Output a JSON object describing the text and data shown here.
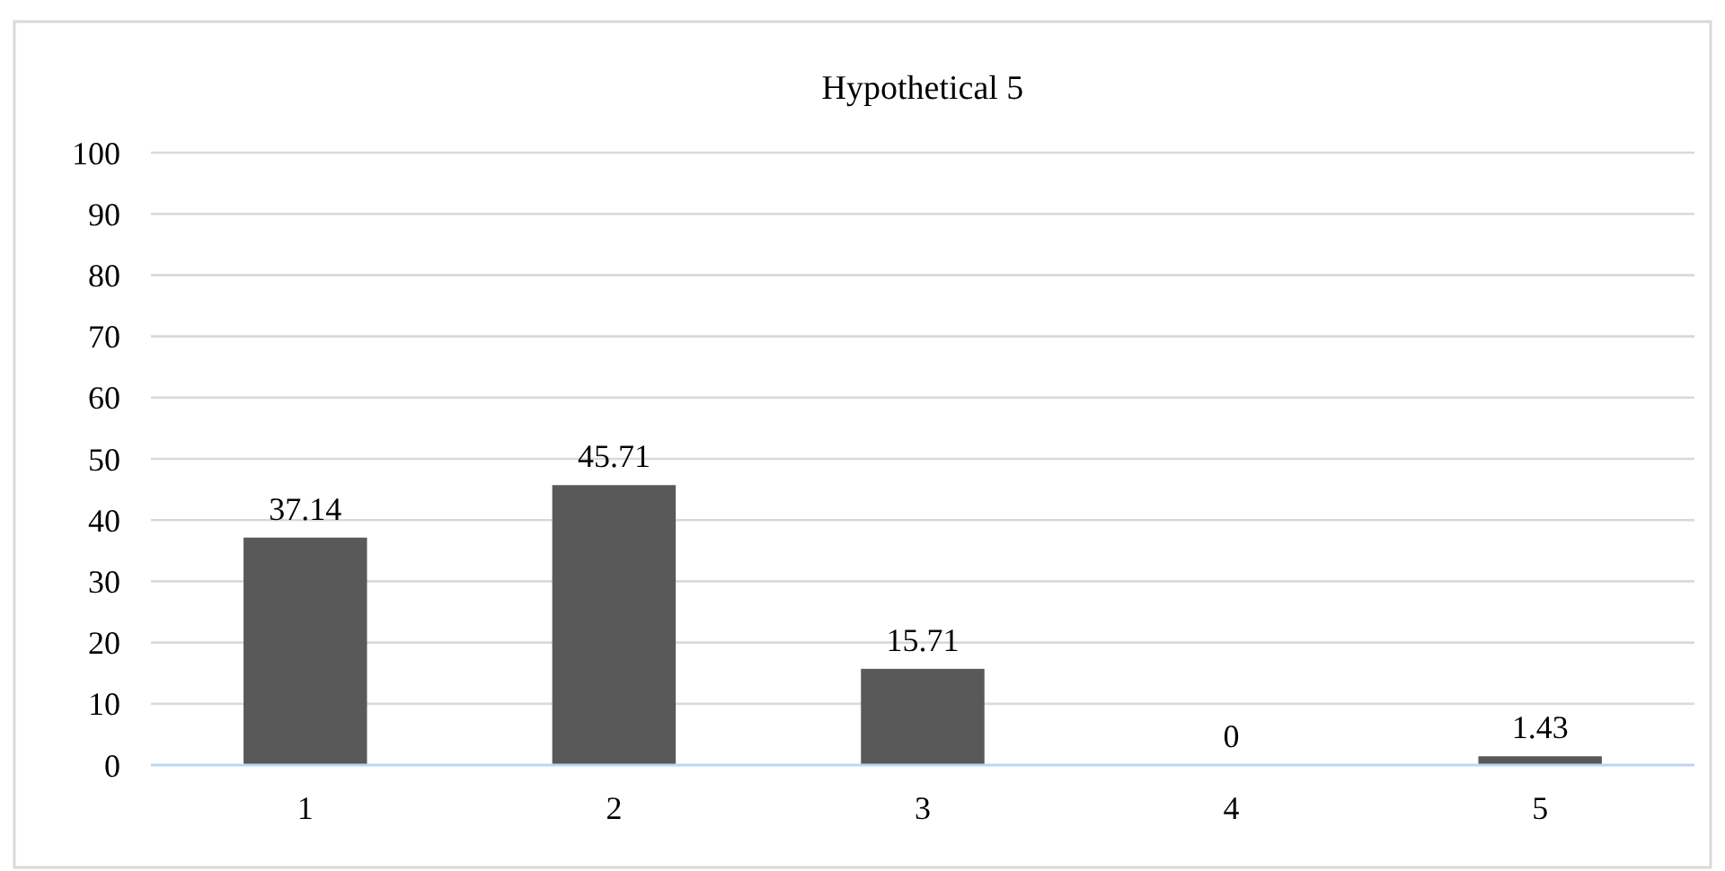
{
  "chart_data": {
    "type": "bar",
    "title": "Hypothetical 5",
    "categories": [
      "1",
      "2",
      "3",
      "4",
      "5"
    ],
    "values": [
      37.14,
      45.71,
      15.71,
      0,
      1.43
    ],
    "color": "#595959",
    "ylim": [
      0,
      100
    ],
    "yticks": [
      0,
      10,
      20,
      30,
      40,
      50,
      60,
      70,
      80,
      90,
      100
    ],
    "grid": "y",
    "data_labels": true
  }
}
